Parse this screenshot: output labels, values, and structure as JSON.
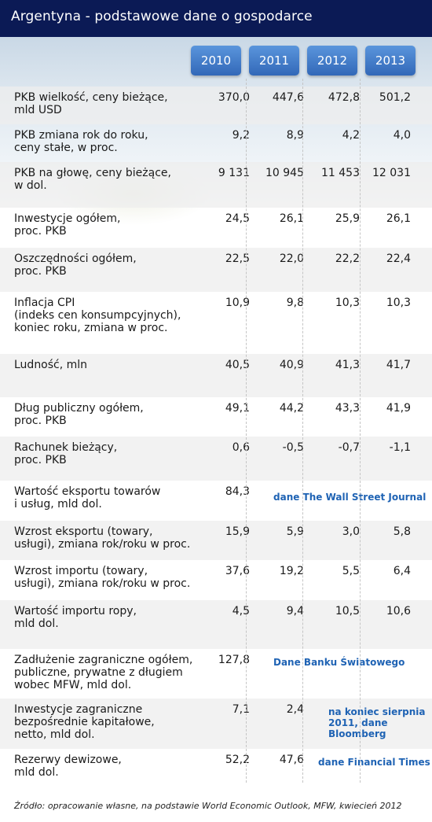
{
  "title": "Argentyna - podstawowe dane o gospodarce",
  "colors": {
    "header_bg": "#0b1a55",
    "tab_blue": "#3c78c8",
    "note_blue": "#1f63b4"
  },
  "chart_data": {
    "type": "table",
    "title": "Argentyna - podstawowe dane o gospodarce",
    "columns": [
      "2010",
      "2011",
      "2012",
      "2013"
    ],
    "rows": [
      {
        "label": "PKB wielkość, ceny bieżące,\nmld USD",
        "values": [
          "370,0",
          "447,6",
          "472,8",
          "501,2"
        ]
      },
      {
        "label": "PKB zmiana rok do roku,\nceny stałe, w proc.",
        "values": [
          "9,2",
          "8,9",
          "4,2",
          "4,0"
        ]
      },
      {
        "label": "PKB na głowę, ceny bieżące,\nw dol.",
        "values": [
          "9 131",
          "10 945",
          "11 453",
          "12 031"
        ]
      },
      {
        "label": "Inwestycje ogółem,\nproc. PKB",
        "values": [
          "24,5",
          "26,1",
          "25,9",
          "26,1"
        ]
      },
      {
        "label": "Oszczędności ogółem,\nproc. PKB",
        "values": [
          "22,5",
          "22,0",
          "22,2",
          "22,4"
        ]
      },
      {
        "label": "Inflacja CPI\n(indeks cen konsumpcyjnych),\nkoniec roku, zmiana w proc.",
        "values": [
          "10,9",
          "9,8",
          "10,3",
          "10,3"
        ]
      },
      {
        "label": "Ludność, mln",
        "values": [
          "40,5",
          "40,9",
          "41,3",
          "41,7"
        ]
      },
      {
        "label": "Dług publiczny ogółem,\nproc. PKB",
        "values": [
          "49,1",
          "44,2",
          "43,3",
          "41,9"
        ]
      },
      {
        "label": "Rachunek bieżący,\nproc. PKB",
        "values": [
          "0,6",
          "-0,5",
          "-0,7",
          "-1,1"
        ]
      },
      {
        "label": "Wartość eksportu towarów\n i usług, mld dol.",
        "values": [
          "84,3",
          "",
          "",
          ""
        ],
        "note": "dane The Wall Street Journal"
      },
      {
        "label": "Wzrost eksportu (towary,\nusługi), zmiana rok/roku w proc.",
        "values": [
          "15,9",
          "5,9",
          "3,0",
          "5,8"
        ]
      },
      {
        "label": "Wzrost importu (towary,\nusługi), zmiana rok/roku w proc.",
        "values": [
          "37,6",
          "19,2",
          "5,5",
          "6,4"
        ]
      },
      {
        "label": "Wartość importu ropy,\nmld dol.",
        "values": [
          "4,5",
          "9,4",
          "10,5",
          "10,6"
        ]
      },
      {
        "label": "Zadłużenie zagraniczne ogółem,\npubliczne, prywatne z długiem\nwobec MFW, mld dol.",
        "values": [
          "127,8",
          "",
          "",
          ""
        ],
        "note": "Dane Banku Światowego"
      },
      {
        "label": "Inwestycje zagraniczne\nbezpośrednie kapitałowe,\nnetto, mld dol.",
        "values": [
          "7,1",
          "2,4",
          "",
          ""
        ],
        "note": "na koniec sierpnia\n2011, dane\nBloomberg"
      },
      {
        "label": "Rezerwy dewizowe,\nmld dol.",
        "values": [
          "52,2",
          "47,6",
          "",
          ""
        ],
        "note": "dane Financial Times"
      }
    ],
    "source": "Źródło: opracowanie własne, na podstawie World  Economic Outlook, MFW, kwiecień 2012"
  }
}
